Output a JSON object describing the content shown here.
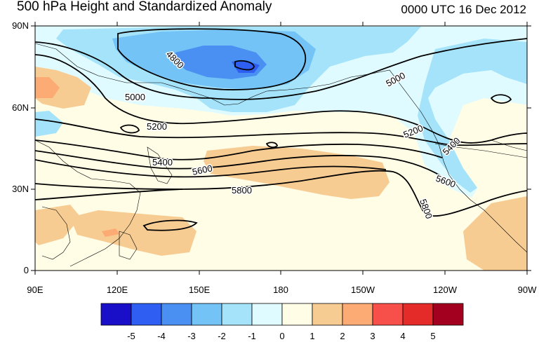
{
  "title": "500 hPa Height and Standardized Anomaly",
  "valid_time": "0000 UTC 16 Dec 2012",
  "lat_ticks": [
    "90N",
    "60N",
    "30N",
    "0"
  ],
  "lon_ticks": [
    "90E",
    "120E",
    "150E",
    "180",
    "150W",
    "120W",
    "90W"
  ],
  "contour_labels": [
    "4800",
    "5000",
    "5000",
    "5200",
    "5200",
    "5400",
    "5400",
    "5600",
    "5600",
    "5800",
    "5800"
  ],
  "colorbar": {
    "labels": [
      "-5",
      "-4",
      "-3",
      "-2",
      "-1",
      "0",
      "1",
      "2",
      "3",
      "4",
      "5"
    ],
    "colors": [
      "#1a0fc8",
      "#2f5ff2",
      "#4a8ff2",
      "#73c3f7",
      "#a5e3fa",
      "#e0fbff",
      "#fffde6",
      "#f7cc93",
      "#fcab74",
      "#f7504a",
      "#e52a2a",
      "#a3001f"
    ]
  },
  "colors": {
    "land_outline": "#000000",
    "contour": "#000000",
    "border": "#000000"
  }
}
